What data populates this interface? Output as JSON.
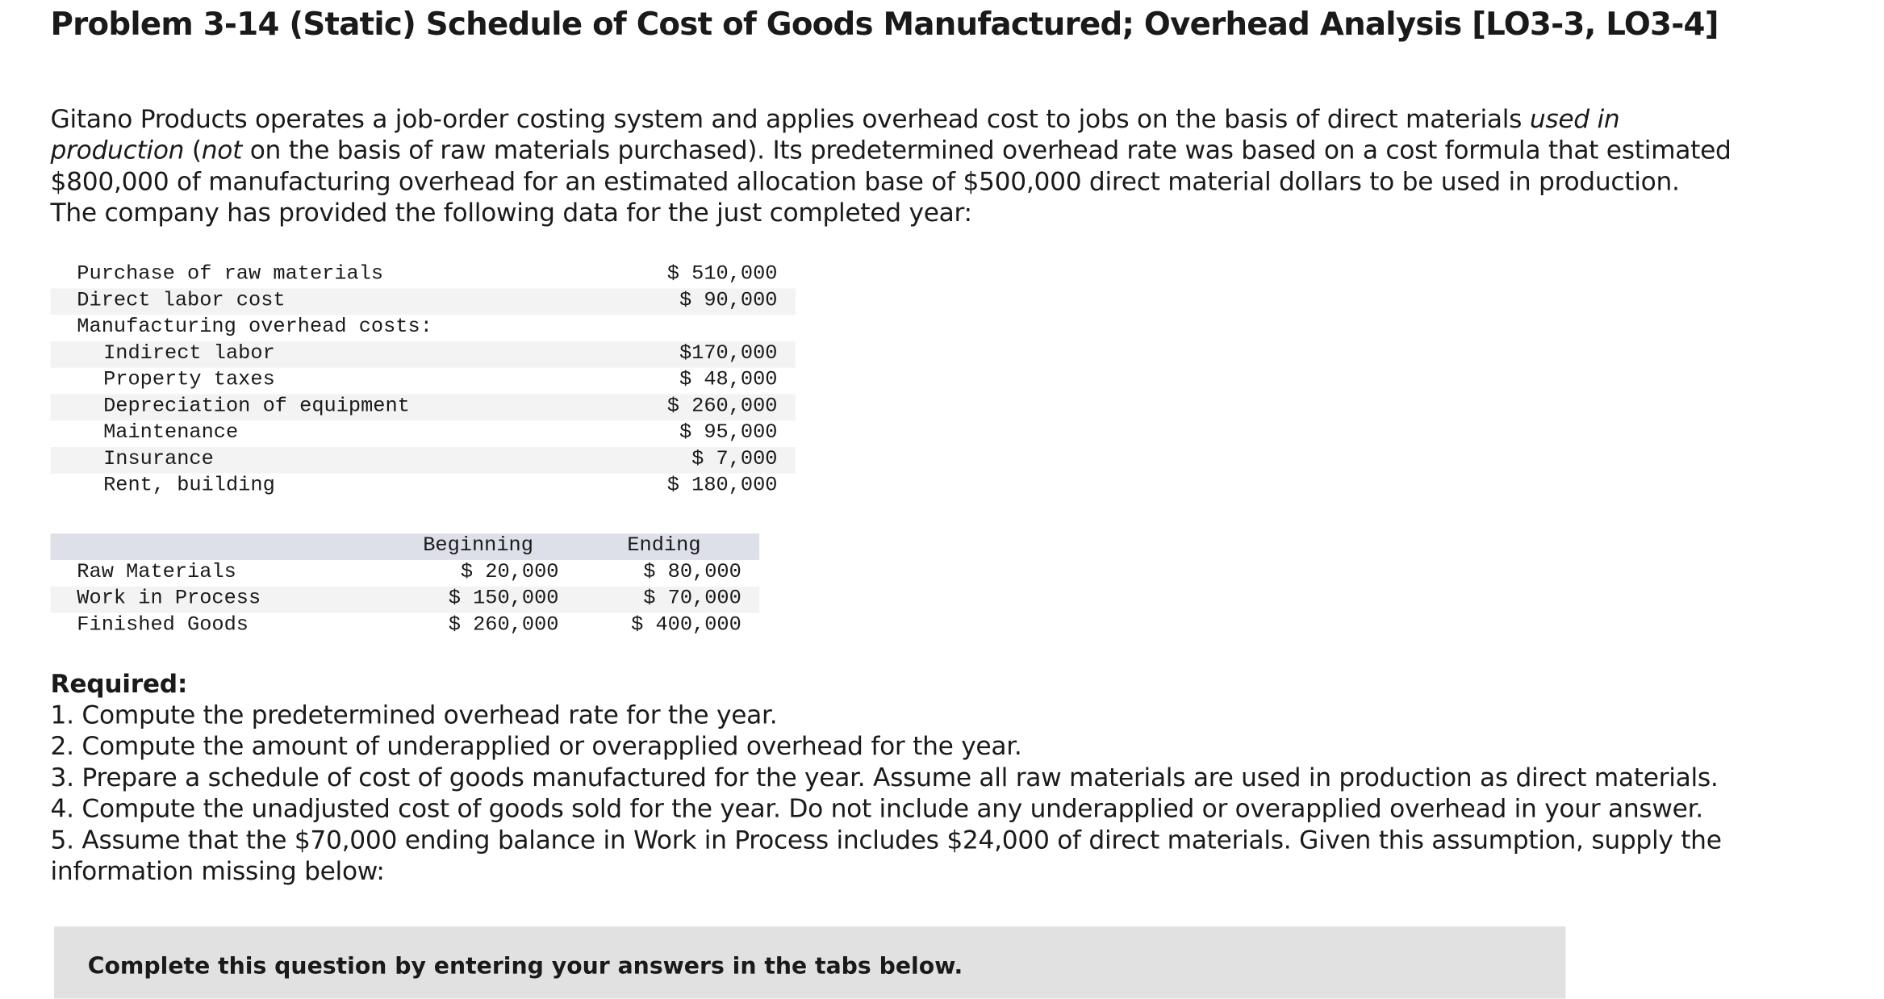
{
  "header": {
    "title": "Problem 3-14 (Static) Schedule of Cost of Goods Manufactured; Overhead Analysis [LO3-3, LO3-4]"
  },
  "intro": {
    "parts": [
      "Gitano Products operates a job-order costing system and applies overhead cost to jobs on the basis of direct materials ",
      "used in production",
      " (",
      "not",
      " on the basis of raw materials purchased). Its predetermined overhead rate was based on a cost formula that estimated $800,000 of manufacturing overhead for an estimated allocation base of $500,000 direct material dollars to be used in production. The company has provided the following data for the just completed year:"
    ]
  },
  "costs": {
    "rows": [
      [
        "Purchase of raw materials",
        "$ 510,000"
      ],
      [
        "Direct labor cost",
        "$ 90,000"
      ]
    ],
    "overhead_heading": "Manufacturing overhead costs:",
    "overhead_rows": [
      [
        "Indirect labor",
        "$170,000"
      ],
      [
        "Property taxes",
        "$ 48,000"
      ],
      [
        "Depreciation of equipment",
        "$ 260,000"
      ],
      [
        "Maintenance",
        "$ 95,000"
      ],
      [
        "Insurance",
        "$ 7,000"
      ],
      [
        "Rent, building",
        "$ 180,000"
      ]
    ]
  },
  "inventories": {
    "columns": [
      "Beginning",
      "Ending"
    ],
    "rows": [
      [
        "Raw Materials",
        "$ 20,000",
        "$ 80,000"
      ],
      [
        "Work in Process",
        "$ 150,000",
        "$ 70,000"
      ],
      [
        "Finished Goods",
        "$ 260,000",
        "$ 400,000"
      ]
    ]
  },
  "required": {
    "title": "Required:",
    "items": [
      "1. Compute the predetermined overhead rate for the year.",
      "2. Compute the amount of underapplied or overapplied overhead for the year.",
      "3. Prepare a schedule of cost of goods manufactured for the year. Assume all raw materials are used in production as direct materials.",
      "4. Compute the unadjusted cost of goods sold for the year. Do not include any underapplied or overapplied overhead in your answer.",
      "5. Assume that the $70,000 ending balance in Work in Process includes $24,000 of direct materials. Given this assumption, supply the information missing below:"
    ]
  },
  "instructions": {
    "text": "Complete this question by entering your answers in the tabs below."
  }
}
